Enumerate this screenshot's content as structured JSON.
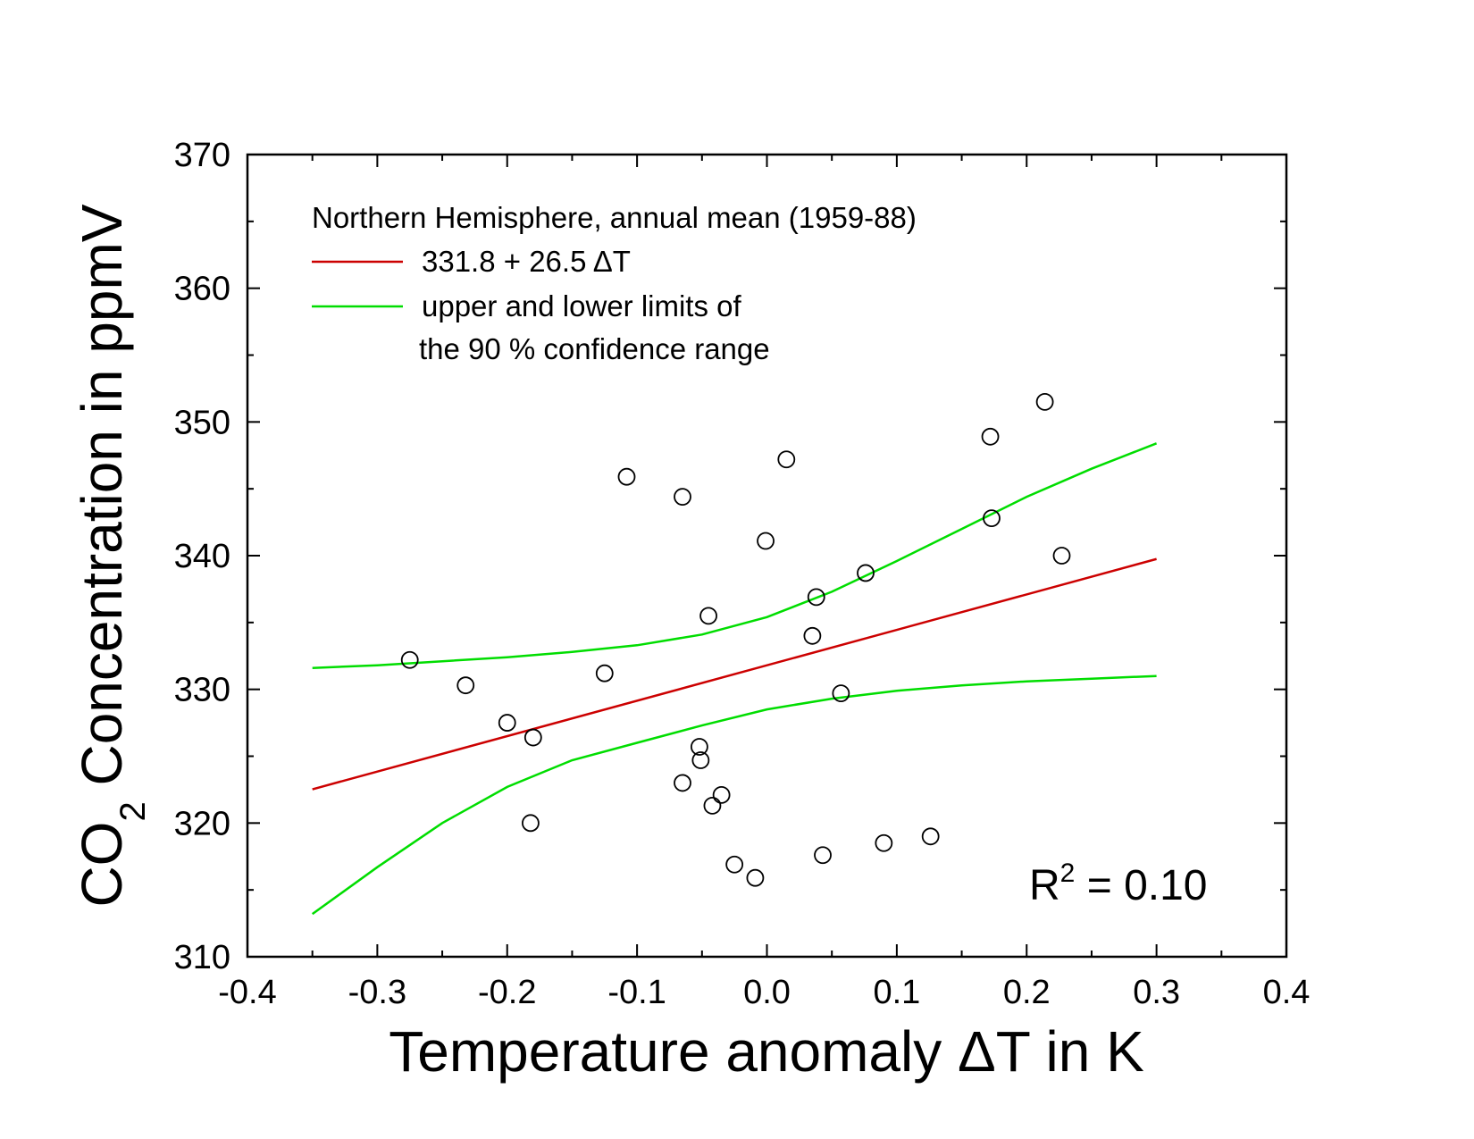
{
  "chart_data": {
    "type": "scatter",
    "title": "",
    "xlabel": {
      "prefix": "Temperature anomaly ",
      "symbol": "ΔT",
      "suffix": " in K"
    },
    "ylabel": {
      "prefix": "CO",
      "subscript": "2",
      "suffix": " Concentration in ppmV"
    },
    "xlim": [
      -0.4,
      0.4
    ],
    "ylim": [
      310,
      370
    ],
    "x_ticks": [
      "-0.4",
      "-0.3",
      "-0.2",
      "-0.1",
      "0.0",
      "0.1",
      "0.2",
      "0.3",
      "0.4"
    ],
    "y_ticks": [
      "310",
      "320",
      "330",
      "340",
      "350",
      "360",
      "370"
    ],
    "legend": {
      "header": "Northern Hemisphere, annual mean (1959-88)",
      "fit_label": "331.8 + 26.5 ΔT",
      "confidence_label_line1": "upper and lower limits of",
      "confidence_label_line2": "the 90 % confidence range"
    },
    "r2": {
      "base": "R",
      "sup": "2",
      "value": " = 0.10"
    },
    "colors": {
      "fit": "#cc0000",
      "confidence": "#00dd00",
      "points": "#000000",
      "axes": "#000000"
    },
    "fit": {
      "intercept": 331.8,
      "slope": 26.5,
      "x_range": [
        -0.35,
        0.3
      ]
    },
    "confidence_upper": [
      [
        -0.35,
        331.6
      ],
      [
        -0.3,
        331.8
      ],
      [
        -0.25,
        332.1
      ],
      [
        -0.2,
        332.4
      ],
      [
        -0.15,
        332.8
      ],
      [
        -0.1,
        333.3
      ],
      [
        -0.05,
        334.1
      ],
      [
        0.0,
        335.4
      ],
      [
        0.05,
        337.3
      ],
      [
        0.1,
        339.6
      ],
      [
        0.15,
        342.0
      ],
      [
        0.2,
        344.4
      ],
      [
        0.25,
        346.5
      ],
      [
        0.3,
        348.4
      ]
    ],
    "confidence_lower": [
      [
        -0.35,
        313.2
      ],
      [
        -0.3,
        316.7
      ],
      [
        -0.25,
        320.0
      ],
      [
        -0.2,
        322.7
      ],
      [
        -0.15,
        324.7
      ],
      [
        -0.1,
        326.0
      ],
      [
        -0.05,
        327.3
      ],
      [
        0.0,
        328.5
      ],
      [
        0.05,
        329.3
      ],
      [
        0.1,
        329.9
      ],
      [
        0.15,
        330.3
      ],
      [
        0.2,
        330.6
      ],
      [
        0.25,
        330.8
      ],
      [
        0.3,
        331.0
      ]
    ],
    "points": [
      [
        -0.275,
        332.2
      ],
      [
        -0.232,
        330.3
      ],
      [
        -0.2,
        327.5
      ],
      [
        -0.18,
        326.4
      ],
      [
        -0.182,
        320.0
      ],
      [
        -0.125,
        331.2
      ],
      [
        -0.108,
        345.9
      ],
      [
        -0.065,
        344.4
      ],
      [
        -0.045,
        335.5
      ],
      [
        -0.052,
        325.7
      ],
      [
        -0.051,
        324.7
      ],
      [
        -0.065,
        323.0
      ],
      [
        -0.035,
        322.1
      ],
      [
        -0.042,
        321.3
      ],
      [
        -0.025,
        316.9
      ],
      [
        -0.009,
        315.9
      ],
      [
        -0.001,
        341.1
      ],
      [
        0.015,
        347.2
      ],
      [
        0.035,
        334.0
      ],
      [
        0.038,
        336.9
      ],
      [
        0.043,
        317.6
      ],
      [
        0.057,
        329.7
      ],
      [
        0.076,
        338.7
      ],
      [
        0.09,
        318.5
      ],
      [
        0.126,
        319.0
      ],
      [
        0.172,
        348.9
      ],
      [
        0.173,
        342.8
      ],
      [
        0.214,
        351.5
      ],
      [
        0.227,
        340.0
      ]
    ]
  }
}
